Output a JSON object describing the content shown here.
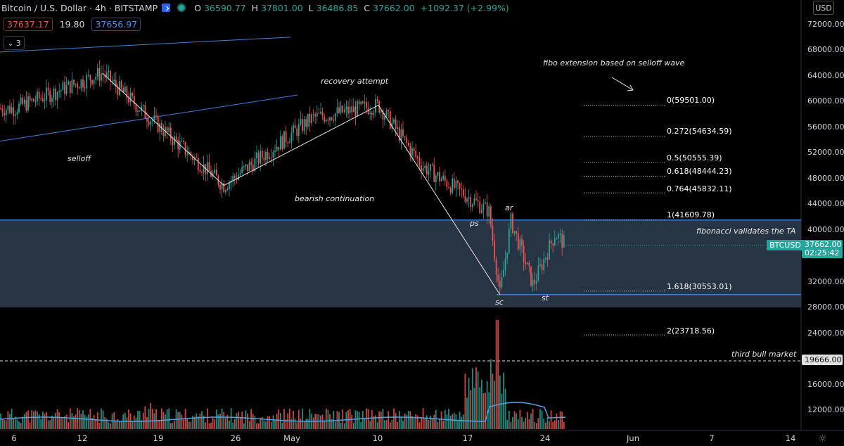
{
  "header": {
    "title": "Bitcoin / U.S. Dollar · 4h · BITSTAMP",
    "ohlc": {
      "o_label": "O",
      "o": "36590.77",
      "h_label": "H",
      "h": "37801.00",
      "l_label": "L",
      "l": "36486.85",
      "c_label": "C",
      "c": "37662.00",
      "change": "+1092.37 (+2.99%)"
    },
    "sell_price": "37637.17",
    "spread": "19.80",
    "buy_price": "37656.97",
    "indicator_count": "3",
    "currency": "USD"
  },
  "axis": {
    "y_ticks": [
      "72000.00",
      "68000.00",
      "64000.00",
      "60000.00",
      "56000.00",
      "52000.00",
      "48000.00",
      "44000.00",
      "40000.00",
      "36000.00",
      "32000.00",
      "28000.00",
      "24000.00",
      "20000.00",
      "16000.00",
      "12000.00"
    ],
    "x_ticks": [
      "6",
      "12",
      "19",
      "26",
      "May",
      "10",
      "17",
      "24",
      "Jun",
      "7",
      "14"
    ]
  },
  "price_tag": {
    "symbol": "BTCUSD",
    "price": "37662.00",
    "countdown": "02:25:42"
  },
  "bull_line_tag": "19666.00",
  "annotations": {
    "selloff": "selloff",
    "recovery": "recovery attempt",
    "bearish": "bearish continuation",
    "fibo_ext": "fibo extension based on selloff wave",
    "fibo_valid": "fibonacci validates the TA",
    "third_bull": "third bull market",
    "ps": "ps",
    "ar": "ar",
    "sc": "sc",
    "st": "st"
  },
  "fib_levels": [
    {
      "label": "0(59501.00)",
      "price": 59501
    },
    {
      "label": "0.272(54634.59)",
      "price": 54634.59
    },
    {
      "label": "0.5(50555.39)",
      "price": 50555.39
    },
    {
      "label": "0.618(48444.23)",
      "price": 48444.23
    },
    {
      "label": "0.764(45832.11)",
      "price": 45832.11
    },
    {
      "label": "1(41609.78)",
      "price": 41609.78
    },
    {
      "label": "1.618(30553.01)",
      "price": 30553.01
    },
    {
      "label": "2(23718.56)",
      "price": 23718.56
    }
  ],
  "colors": {
    "up": "#26a69a",
    "down": "#ef5350",
    "trend": "#3f7fd9",
    "zone": "#2b3a4a",
    "volume_ma": "#4fa3e0"
  },
  "chart_data": {
    "type": "line",
    "title": "Bitcoin / U.S. Dollar · 4h · BITSTAMP",
    "ylim": [
      10000,
      74000
    ],
    "y_scale": "linear",
    "x": [
      "2021-04-06",
      "2021-04-14",
      "2021-04-18",
      "2021-04-25",
      "2021-05-03",
      "2021-05-09",
      "2021-05-13",
      "2021-05-19",
      "2021-05-20",
      "2021-05-21",
      "2021-05-23",
      "2021-05-25",
      "2021-05-26"
    ],
    "series": [
      {
        "values": [
          59000,
          64500,
          58000,
          47000,
          57500,
          59500,
          50000,
          43000,
          30000,
          41500,
          31500,
          39500,
          37662
        ]
      }
    ],
    "support_zone": [
      28000,
      41609.78
    ],
    "horizontal_lines": [
      41609.78,
      30000,
      19666
    ],
    "legend": "none",
    "grid": false
  }
}
